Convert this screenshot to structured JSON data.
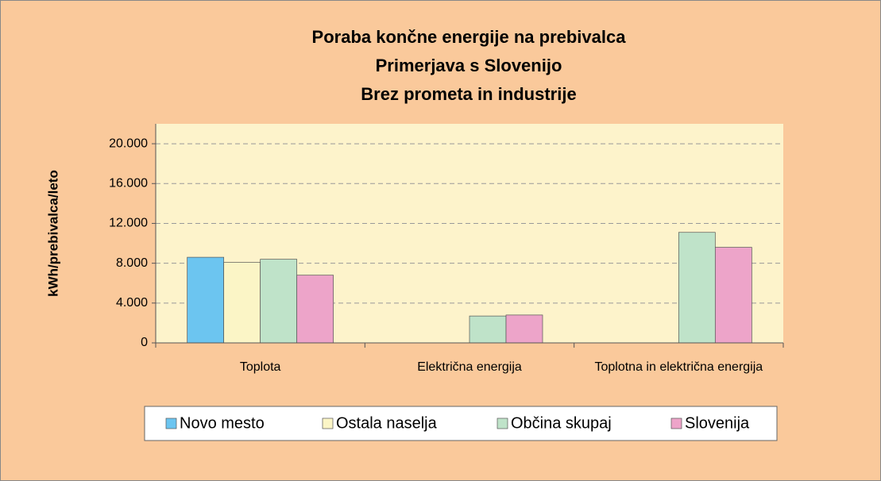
{
  "chart_data": {
    "type": "bar",
    "title": [
      "Poraba končne energije na prebivalca",
      "Primerjava s Slovenijo",
      "Brez prometa in industrije"
    ],
    "y_label": "kWh/prebivalca/leto",
    "categories": [
      "Toplota",
      "Električna energija",
      "Toplotna in električna energija"
    ],
    "series": [
      {
        "name": "Novo mesto",
        "color": "#6cc5f0",
        "values": [
          8600,
          null,
          null
        ]
      },
      {
        "name": "Ostala naselja",
        "color": "#fbf5c6",
        "values": [
          8100,
          null,
          null
        ]
      },
      {
        "name": "Občina skupaj",
        "color": "#bfe3c9",
        "values": [
          8400,
          2700,
          11100
        ]
      },
      {
        "name": "Slovenija",
        "color": "#eda4c9",
        "values": [
          6800,
          2800,
          9600
        ]
      }
    ],
    "ylim": [
      0,
      22000
    ],
    "yticks": [
      0,
      {
        "value": 4000,
        "label": "4.000"
      },
      {
        "value": 8000,
        "label": "8.000"
      },
      {
        "value": 12000,
        "label": "12.000"
      },
      {
        "value": 16000,
        "label": "16.000"
      },
      {
        "value": 20000,
        "label": "20.000"
      }
    ],
    "grid": true,
    "legend": "bottom"
  }
}
